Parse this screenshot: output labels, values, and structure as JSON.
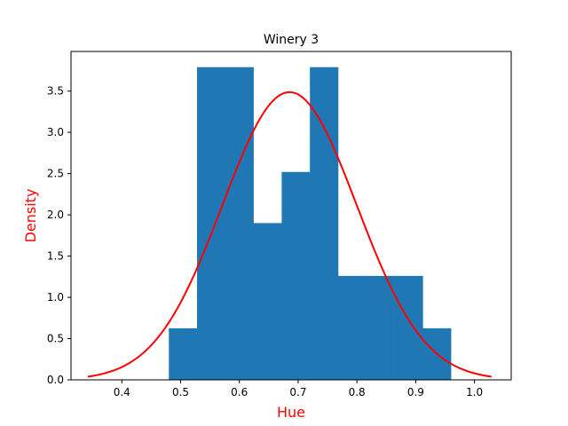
{
  "chart_data": {
    "type": "bar",
    "title": "Winery 3",
    "xlabel": "Hue",
    "ylabel": "Density",
    "xlim": [
      0.3135,
      1.0625
    ],
    "ylim": [
      0,
      3.98
    ],
    "grid": false,
    "bar_color": "#1f77b4",
    "curve_color": "#ff0000",
    "label_color": "#ff0000",
    "xticks": [
      "0.4",
      "0.5",
      "0.6",
      "0.7",
      "0.8",
      "0.9",
      "1.0"
    ],
    "yticks": [
      "0.0",
      "0.5",
      "1.0",
      "1.5",
      "2.0",
      "2.5",
      "3.0",
      "3.5"
    ],
    "histogram": {
      "bin_edges": [
        0.48,
        0.528,
        0.576,
        0.624,
        0.672,
        0.72,
        0.768,
        0.816,
        0.864,
        0.912,
        0.96
      ],
      "densities": [
        0.625,
        3.79,
        3.79,
        1.9,
        2.52,
        3.79,
        1.26,
        1.26,
        1.26,
        0.625
      ]
    },
    "normal_curve": {
      "mean": 0.6854,
      "std": 0.1144,
      "x_range": [
        0.342,
        1.029
      ]
    }
  }
}
